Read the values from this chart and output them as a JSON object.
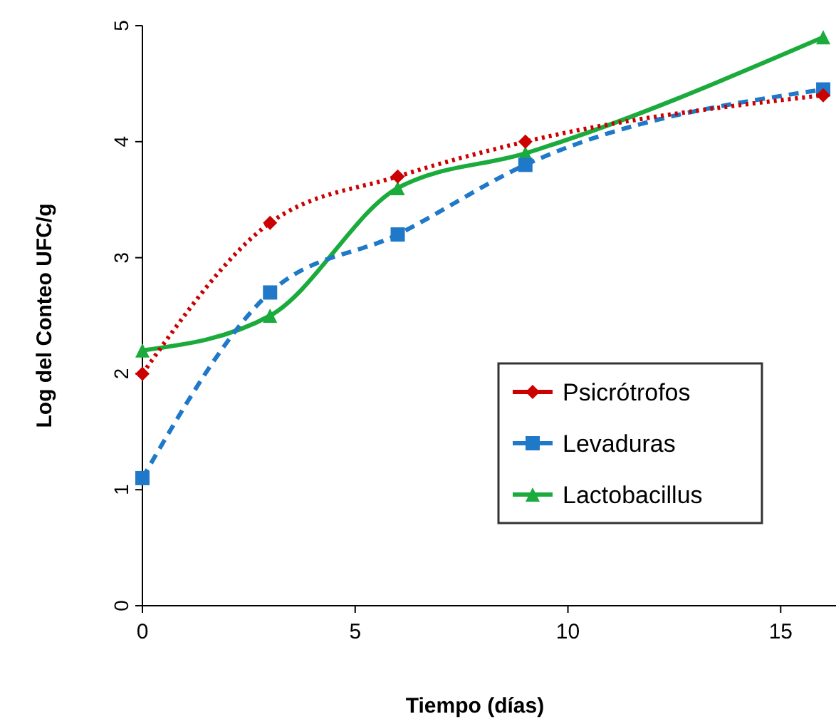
{
  "chart_data": {
    "type": "line",
    "xlabel": "Tiempo (días)",
    "ylabel": "Log del Conteo  UFC/g",
    "x": [
      0,
      3,
      6,
      9,
      16
    ],
    "xlim": [
      0,
      16.3
    ],
    "xticks": [
      0,
      5,
      10,
      15
    ],
    "ylim": [
      0,
      5
    ],
    "yticks": [
      0,
      1,
      2,
      3,
      4,
      5
    ],
    "legend": "bottom right",
    "series": [
      {
        "name": "Psicrótrofos",
        "color": "#cc0000",
        "values": [
          2.0,
          3.3,
          3.7,
          4.0,
          4.4
        ],
        "marker": "diamond",
        "line_style": "dotted"
      },
      {
        "name": "Levaduras",
        "color": "#1f78c8",
        "values": [
          1.1,
          2.7,
          3.2,
          3.8,
          4.45
        ],
        "marker": "square",
        "line_style": "dashed"
      },
      {
        "name": "Lactobacillus",
        "color": "#1aab3c",
        "values": [
          2.2,
          2.5,
          3.6,
          3.9,
          4.9
        ],
        "marker": "triangle",
        "line_style": "solid"
      }
    ]
  }
}
